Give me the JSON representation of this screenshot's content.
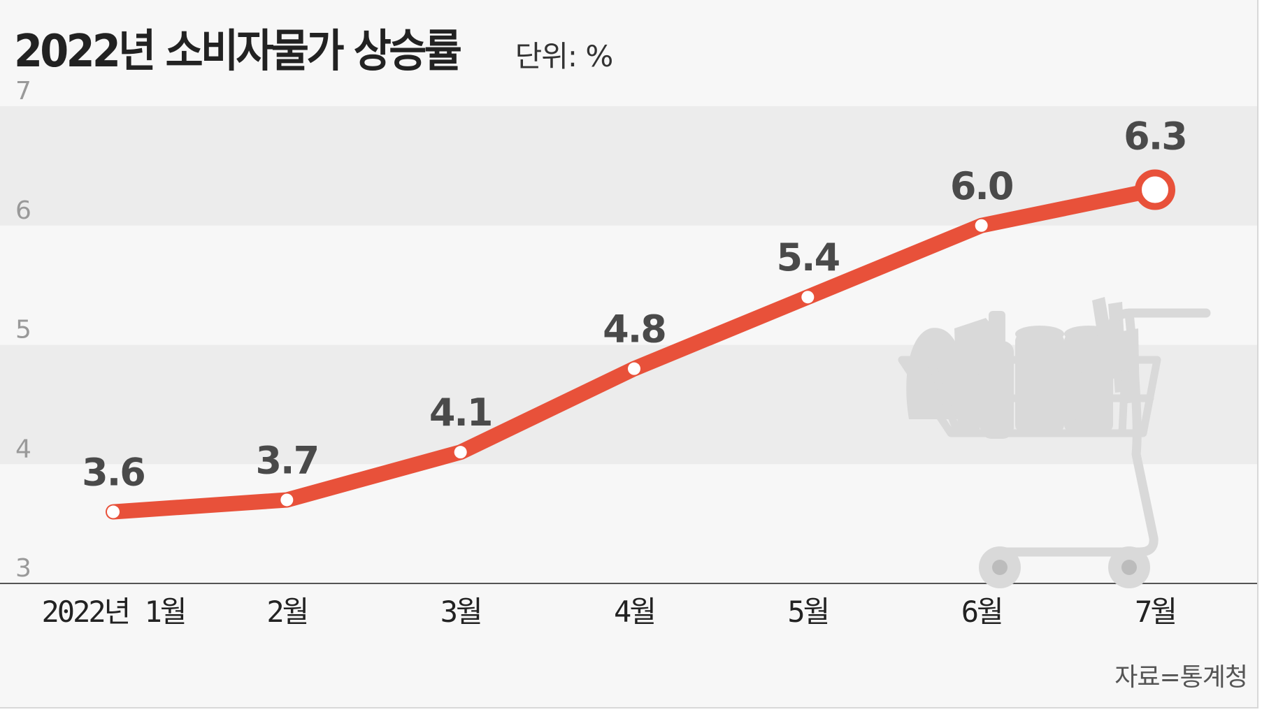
{
  "title": "2022년 소비자물가 상승률",
  "unit": "단위: %",
  "source": "자료=통계청",
  "colors": {
    "line": "#e8513a",
    "band": "#ececec",
    "background": "#f7f7f7",
    "axis": "#555555",
    "cart": "#d9d9d9"
  },
  "illustration": "shopping-cart-icon",
  "chart_data": {
    "type": "line",
    "categories": [
      "2022년 1월",
      "2월",
      "3월",
      "4월",
      "5월",
      "6월",
      "7월"
    ],
    "values": [
      3.6,
      3.7,
      4.1,
      4.8,
      5.4,
      6.0,
      6.3
    ],
    "value_labels": [
      "3.6",
      "3.7",
      "4.1",
      "4.8",
      "5.4",
      "6.0",
      "6.3"
    ],
    "yticks": [
      3,
      4,
      5,
      6,
      7
    ],
    "ylim": [
      3,
      7
    ],
    "grid": "alternating horizontal bands",
    "legend": "none",
    "highlight_last": true
  }
}
